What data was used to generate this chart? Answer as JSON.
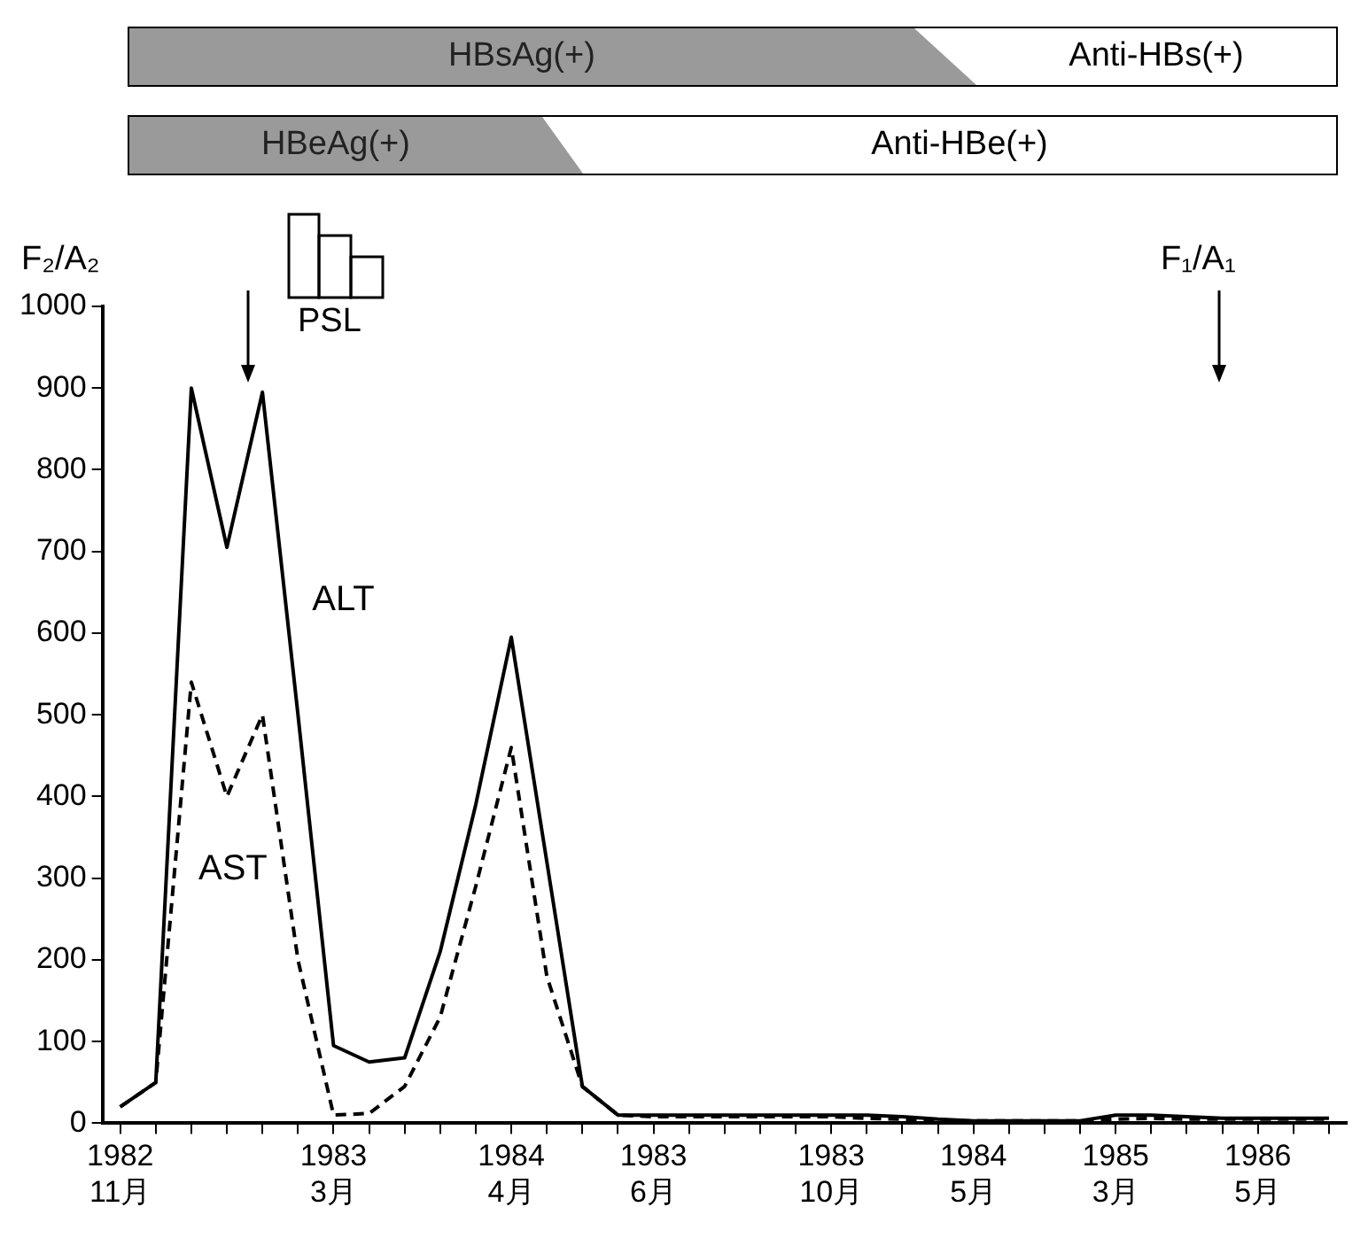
{
  "chart_data": {
    "type": "line",
    "categories": [
      "1982 11月",
      null,
      null,
      null,
      null,
      null,
      "1983 3月",
      null,
      null,
      null,
      null,
      "1984 4月",
      null,
      null,
      null,
      "1983 6月",
      null,
      null,
      null,
      null,
      "1983 10月",
      null,
      null,
      null,
      "1984 5月",
      null,
      null,
      null,
      "1985 3月",
      null,
      null,
      null,
      "1986 5月",
      null,
      null
    ],
    "series": [
      {
        "name": "ALT",
        "color": "#000000",
        "line_style": "solid",
        "values": [
          20,
          50,
          900,
          705,
          895,
          500,
          95,
          75,
          80,
          210,
          390,
          595,
          320,
          45,
          10,
          10,
          10,
          10,
          10,
          10,
          10,
          10,
          8,
          5,
          3,
          3,
          3,
          3,
          10,
          10,
          8,
          6,
          6,
          6,
          6
        ]
      },
      {
        "name": "AST",
        "color": "#000000",
        "line_style": "dashed",
        "values": [
          20,
          50,
          540,
          400,
          500,
          200,
          10,
          12,
          45,
          130,
          290,
          460,
          180,
          45,
          10,
          8,
          8,
          8,
          8,
          8,
          8,
          6,
          5,
          3,
          3,
          3,
          3,
          3,
          5,
          6,
          5,
          5,
          5,
          5,
          5
        ]
      }
    ],
    "ylim": [
      0,
      1000
    ],
    "yticks": [
      0,
      100,
      200,
      300,
      400,
      500,
      600,
      700,
      800,
      900,
      1000
    ],
    "grid": false,
    "legend": false,
    "marker": "none",
    "annotations": [
      "F₂/A₂",
      "PSL",
      "F₁/A₁",
      "HBsAg(+)",
      "Anti-HBs(+)",
      "HBeAg(+)",
      "Anti-HBe(+)"
    ]
  }
}
